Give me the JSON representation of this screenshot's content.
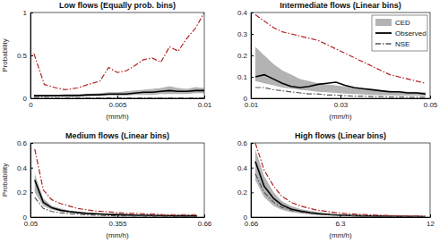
{
  "chart_data": [
    {
      "type": "line",
      "title": "Low flows (Equally prob. bins)",
      "x_label": "(mm/h)",
      "y_label": "Probability",
      "x": [
        0.0002,
        0.0008,
        0.0015,
        0.002,
        0.0027,
        0.0033,
        0.004,
        0.0045,
        0.005,
        0.0055,
        0.006,
        0.0065,
        0.007,
        0.0075,
        0.008,
        0.0085,
        0.009,
        0.0095,
        0.01
      ],
      "xlim": [
        0,
        0.01
      ],
      "xticks": [
        0,
        0.005,
        0.01
      ],
      "ylim": [
        0,
        1
      ],
      "yticks": [
        0,
        0.5,
        1
      ],
      "series": [
        {
          "type": "area",
          "color": "#b3b3b3",
          "lower": [
            0.02,
            0.02,
            0.02,
            0.02,
            0.02,
            0.02,
            0.03,
            0.03,
            0.03,
            0.03,
            0.04,
            0.04,
            0.04,
            0.05,
            0.05,
            0.05,
            0.05,
            0.06,
            0.06
          ],
          "upper": [
            0.04,
            0.04,
            0.04,
            0.05,
            0.05,
            0.05,
            0.06,
            0.07,
            0.07,
            0.08,
            0.09,
            0.1,
            0.11,
            0.12,
            0.14,
            0.12,
            0.11,
            0.13,
            0.12
          ]
        },
        {
          "type": "line",
          "color": "#000000",
          "values": [
            0.03,
            0.03,
            0.03,
            0.03,
            0.03,
            0.04,
            0.04,
            0.05,
            0.05,
            0.05,
            0.06,
            0.07,
            0.07,
            0.08,
            0.09,
            0.08,
            0.08,
            0.09,
            0.09
          ]
        },
        {
          "type": "line",
          "line_style": "dashdot",
          "colors": [
            "#b22222",
            "#555555"
          ],
          "upper": [
            0.52,
            0.16,
            0.12,
            0.1,
            0.12,
            0.16,
            0.2,
            0.36,
            0.3,
            0.32,
            0.38,
            0.45,
            0.47,
            0.42,
            0.6,
            0.55,
            0.7,
            0.82,
            1.0
          ],
          "lower": [
            0.01,
            0.01,
            0.005,
            0.005,
            0.005,
            0.005,
            0.005,
            0.005,
            0.005,
            0.005,
            0.005,
            0.005,
            0.005,
            0.005,
            0.005,
            0.005,
            0.005,
            0.005,
            0.005
          ]
        }
      ]
    },
    {
      "type": "line",
      "title": "Intermediate flows (Linear bins)",
      "x_label": "(mm/h)",
      "legend": "upper right",
      "x": [
        0.011,
        0.013,
        0.015,
        0.017,
        0.019,
        0.021,
        0.023,
        0.025,
        0.027,
        0.029,
        0.031,
        0.033,
        0.035,
        0.037,
        0.039,
        0.041,
        0.043,
        0.045,
        0.047,
        0.049
      ],
      "xlim": [
        0.01,
        0.05
      ],
      "xticks": [
        0.01,
        0.03,
        0.05
      ],
      "ylim": [
        0,
        0.4
      ],
      "yticks": [
        0,
        0.1,
        0.2,
        0.3,
        0.4
      ],
      "series": [
        {
          "name": "CED",
          "type": "area",
          "color": "#b3b3b3",
          "lower": [
            0.08,
            0.07,
            0.06,
            0.05,
            0.045,
            0.04,
            0.035,
            0.03,
            0.028,
            0.025,
            0.022,
            0.02,
            0.018,
            0.016,
            0.015,
            0.014,
            0.013,
            0.012,
            0.011,
            0.01
          ],
          "upper": [
            0.24,
            0.2,
            0.16,
            0.13,
            0.11,
            0.09,
            0.08,
            0.07,
            0.065,
            0.06,
            0.055,
            0.05,
            0.045,
            0.04,
            0.038,
            0.035,
            0.033,
            0.03,
            0.03,
            0.028
          ]
        },
        {
          "name": "Observed",
          "type": "line",
          "color": "#000000",
          "values": [
            0.1,
            0.11,
            0.09,
            0.07,
            0.055,
            0.05,
            0.055,
            0.065,
            0.07,
            0.075,
            0.06,
            0.05,
            0.045,
            0.04,
            0.035,
            0.03,
            0.03,
            0.025,
            0.025,
            0.02
          ]
        },
        {
          "name": "NSE",
          "type": "line",
          "line_style": "dashdot",
          "colors": [
            "#b22222",
            "#555555"
          ],
          "upper": [
            0.39,
            0.36,
            0.33,
            0.31,
            0.3,
            0.29,
            0.28,
            0.27,
            0.25,
            0.23,
            0.21,
            0.19,
            0.17,
            0.15,
            0.13,
            0.11,
            0.1,
            0.09,
            0.08,
            0.07
          ],
          "lower": [
            0.05,
            0.05,
            0.04,
            0.035,
            0.03,
            0.025,
            0.02,
            0.02,
            0.015,
            0.015,
            0.012,
            0.01,
            0.01,
            0.008,
            0.008,
            0.006,
            0.006,
            0.005,
            0.005,
            0.005
          ]
        }
      ]
    },
    {
      "type": "line",
      "title": "Medium flows (Linear bins)",
      "x_label": "(mm/h)",
      "y_label": "Probability",
      "x": [
        0.065,
        0.095,
        0.125,
        0.155,
        0.185,
        0.215,
        0.245,
        0.275,
        0.305,
        0.335,
        0.365,
        0.395,
        0.425,
        0.455,
        0.485,
        0.515,
        0.545,
        0.575,
        0.605,
        0.635
      ],
      "xlim": [
        0.05,
        0.66
      ],
      "xticks": [
        0.05,
        0.355,
        0.66
      ],
      "ylim": [
        0,
        0.6
      ],
      "yticks": [
        0,
        0.2,
        0.4,
        0.6
      ],
      "series": [
        {
          "type": "area",
          "color": "#b3b3b3",
          "lower": [
            0.2,
            0.09,
            0.06,
            0.045,
            0.035,
            0.03,
            0.025,
            0.02,
            0.018,
            0.016,
            0.014,
            0.012,
            0.011,
            0.01,
            0.009,
            0.008,
            0.008,
            0.007,
            0.007,
            0.006
          ],
          "upper": [
            0.35,
            0.15,
            0.09,
            0.07,
            0.055,
            0.045,
            0.04,
            0.035,
            0.03,
            0.028,
            0.025,
            0.022,
            0.02,
            0.018,
            0.016,
            0.015,
            0.014,
            0.013,
            0.012,
            0.012
          ]
        },
        {
          "type": "line",
          "color": "#000000",
          "values": [
            0.3,
            0.12,
            0.075,
            0.055,
            0.045,
            0.037,
            0.03,
            0.027,
            0.024,
            0.021,
            0.019,
            0.017,
            0.015,
            0.014,
            0.013,
            0.012,
            0.011,
            0.01,
            0.01,
            0.009
          ]
        },
        {
          "type": "line",
          "line_style": "dashdot",
          "colors": [
            "#b22222",
            "#555555"
          ],
          "upper": [
            0.55,
            0.22,
            0.14,
            0.11,
            0.09,
            0.07,
            0.06,
            0.05,
            0.045,
            0.04,
            0.035,
            0.03,
            0.03,
            0.025,
            0.025,
            0.02,
            0.02,
            0.02,
            0.02,
            0.02
          ],
          "lower": [
            0.16,
            0.07,
            0.045,
            0.035,
            0.028,
            0.022,
            0.018,
            0.015,
            0.013,
            0.011,
            0.01,
            0.009,
            0.008,
            0.007,
            0.006,
            0.006,
            0.005,
            0.005,
            0.005,
            0.004
          ]
        }
      ]
    },
    {
      "type": "line",
      "title": "High flows (Linear bins)",
      "x_label": "(mm/h)",
      "x": [
        0.94,
        1.5,
        2.1,
        2.6,
        3.2,
        3.8,
        4.4,
        4.9,
        5.5,
        6.0,
        6.6,
        7.2,
        7.8,
        8.3,
        8.9,
        9.4,
        10.0,
        10.6,
        11.2,
        11.7
      ],
      "xlim": [
        0.66,
        12
      ],
      "xticks": [
        0.66,
        6.3,
        12
      ],
      "ylim": [
        0,
        0.6
      ],
      "yticks": [
        0,
        0.2,
        0.4,
        0.6
      ],
      "series": [
        {
          "type": "area",
          "color": "#b3b3b3",
          "lower": [
            0.3,
            0.16,
            0.09,
            0.06,
            0.04,
            0.03,
            0.022,
            0.017,
            0.014,
            0.011,
            0.009,
            0.008,
            0.007,
            0.006,
            0.005,
            0.004,
            0.004,
            0.003,
            0.003,
            0.003
          ],
          "upper": [
            0.55,
            0.33,
            0.2,
            0.13,
            0.09,
            0.065,
            0.05,
            0.04,
            0.032,
            0.026,
            0.021,
            0.018,
            0.015,
            0.013,
            0.011,
            0.01,
            0.009,
            0.008,
            0.007,
            0.006
          ]
        },
        {
          "type": "line",
          "color": "#000000",
          "values": [
            0.45,
            0.25,
            0.15,
            0.1,
            0.065,
            0.048,
            0.036,
            0.028,
            0.022,
            0.018,
            0.015,
            0.012,
            0.01,
            0.009,
            0.008,
            0.007,
            0.006,
            0.005,
            0.005,
            0.004
          ]
        },
        {
          "type": "line",
          "line_style": "dashdot",
          "colors": [
            "#b22222",
            "#555555"
          ],
          "upper": [
            0.6,
            0.38,
            0.25,
            0.17,
            0.12,
            0.09,
            0.07,
            0.055,
            0.045,
            0.037,
            0.03,
            0.025,
            0.021,
            0.018,
            0.015,
            0.013,
            0.011,
            0.01,
            0.009,
            0.008
          ],
          "lower": [
            0.35,
            0.2,
            0.12,
            0.08,
            0.055,
            0.04,
            0.03,
            0.023,
            0.018,
            0.015,
            0.012,
            0.01,
            0.008,
            0.007,
            0.006,
            0.005,
            0.005,
            0.004,
            0.004,
            0.003
          ]
        }
      ]
    }
  ]
}
